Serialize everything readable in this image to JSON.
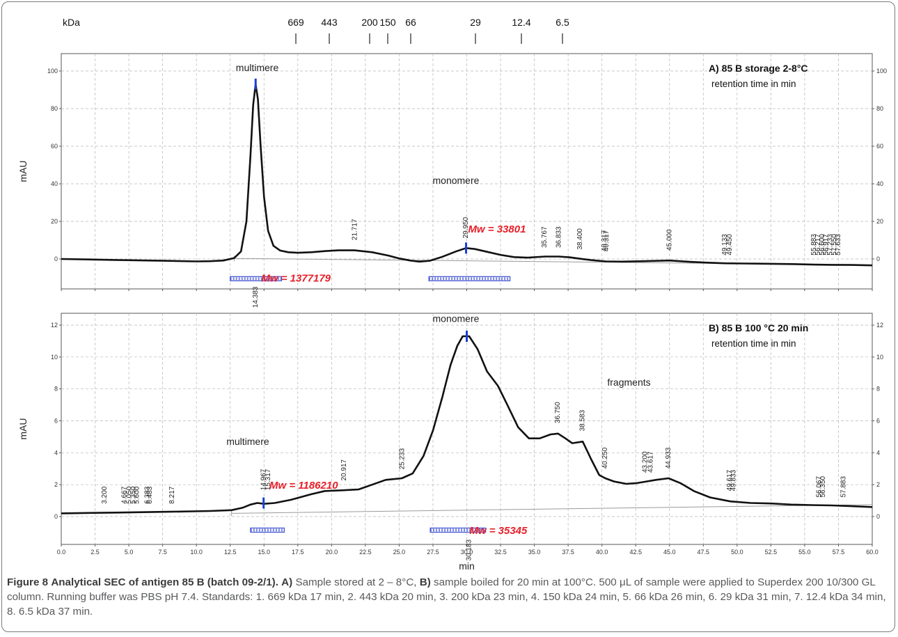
{
  "figure": {
    "title_label": "Figure 8",
    "title_text": "Analytical SEC of antigen 85 B (batch 09-2/1).",
    "caption_a_label": "A)",
    "caption_a_text": "Sample stored at 2 – 8°C,",
    "caption_b_label": "B)",
    "caption_b_text": "sample boiled for 20 min at 100°C. 500 μL of sample were applied to Superdex 200 10/300 GL column. Running buffer was PBS pH 7.4. Standards: 1. 669 kDa 17 min, 2. 443 kDa 20 min, 3. 200 kDa 23 min, 4. 150 kDa 24 min, 5. 66 kDa 26 min, 6. 29 kDa 31 min, 7. 12.4 kDa 34 min, 8. 6.5 kDa 37 min."
  },
  "colors": {
    "trace": "#111111",
    "baseline": "#9a9a9a",
    "grid": "#b5b5b5",
    "annotation_red": "#e8202a",
    "marker_blue": "#1b3fd6",
    "bar_blue": "#3b4fd0"
  },
  "chart_data": [
    {
      "type": "line",
      "id": "panel_a",
      "title": "A) 85 B storage 2-8°C",
      "subtitle": "retention time in min",
      "xlabel": "",
      "ylabel": "mAU",
      "xlim": [
        0,
        60
      ],
      "ylim": [
        -16,
        108
      ],
      "yticks": [
        0,
        20,
        40,
        60,
        80,
        100
      ],
      "grid": true,
      "mw_scale": {
        "label": "kDa",
        "markers": [
          {
            "label": "669",
            "x": 17
          },
          {
            "label": "443",
            "x": 20
          },
          {
            "label": "200",
            "x": 23
          },
          {
            "label": "150",
            "x": 24
          },
          {
            "label": "66",
            "x": 26
          },
          {
            "label": "29",
            "x": 31
          },
          {
            "label": "12.4",
            "x": 34
          },
          {
            "label": "6.5",
            "x": 37
          }
        ]
      },
      "series": [
        {
          "values_x": [
            0,
            4,
            8,
            10,
            11,
            12,
            12.8,
            13.3,
            13.7,
            14.0,
            14.2,
            14.38,
            14.55,
            14.75,
            15.0,
            15.3,
            15.7,
            16.2,
            16.8,
            17.5,
            18.5,
            19.5,
            20.5,
            21.7,
            23.0,
            24.2,
            25.0,
            25.8,
            26.5,
            27.3,
            28.2,
            29.2,
            29.95,
            30.6,
            31.5,
            32.5,
            33.5,
            34.5,
            35.8,
            36.8,
            37.6,
            38.4,
            39.2,
            40.3,
            41.5,
            43.0,
            45.0,
            46.5,
            48.0,
            49.1,
            50.5,
            52.0,
            54.0,
            55.7,
            57.0,
            58.5,
            60.0
          ],
          "values_y": [
            0,
            -0.5,
            -1,
            -1.3,
            -1.2,
            -0.8,
            0.5,
            4,
            20,
            55,
            82,
            93,
            85,
            60,
            33,
            15,
            7,
            4.5,
            3.6,
            3.3,
            3.6,
            4.2,
            4.6,
            4.6,
            3.6,
            1.8,
            0.3,
            -0.8,
            -1.4,
            -0.9,
            1.2,
            4,
            5.8,
            5.3,
            3.8,
            2.2,
            1.0,
            0.7,
            1.3,
            1.3,
            0.9,
            0.1,
            -0.6,
            -1.3,
            -1.4,
            -1.2,
            -0.8,
            -1.5,
            -2.0,
            -2.3,
            -2.4,
            -2.5,
            -2.7,
            -3.0,
            -3.1,
            -3.2,
            -3.4
          ]
        }
      ],
      "baseline": {
        "x": [
          12.8,
          60
        ],
        "y": [
          0.3,
          -3.2
        ]
      },
      "peak_labels": [
        {
          "text": "14.383",
          "x": 14.38,
          "y": -5,
          "below": true
        },
        {
          "text": "21.717",
          "x": 21.72,
          "y": 7
        },
        {
          "text": "29.950",
          "x": 29.95,
          "y": 8
        },
        {
          "text": "35.767",
          "x": 35.77,
          "y": 3
        },
        {
          "text": "36.833",
          "x": 36.83,
          "y": 3
        },
        {
          "text": "38.400",
          "x": 38.4,
          "y": 2
        },
        {
          "text": "40.317",
          "x": 40.2,
          "y": 1
        },
        {
          "text": "40.317",
          "x": 40.35,
          "y": 1
        },
        {
          "text": "45.000",
          "x": 45.0,
          "y": 1.5
        },
        {
          "text": "49.133",
          "x": 49.1,
          "y": -1
        },
        {
          "text": "49.450",
          "x": 49.45,
          "y": -1
        },
        {
          "text": "55.883",
          "x": 55.7,
          "y": -1
        },
        {
          "text": "56.217",
          "x": 56.0,
          "y": -1
        },
        {
          "text": "56.600",
          "x": 56.3,
          "y": -1
        },
        {
          "text": "56.917",
          "x": 56.6,
          "y": -1
        },
        {
          "text": "57.233",
          "x": 56.9,
          "y": -1
        },
        {
          "text": "57.550",
          "x": 57.2,
          "y": -1
        },
        {
          "text": "57.633",
          "x": 57.5,
          "y": -1
        }
      ],
      "text_annotations": [
        {
          "text": "multimere",
          "x": 14.5,
          "y": 100
        },
        {
          "text": "monomere",
          "x": 29.2,
          "y": 40
        }
      ],
      "mw_labels": [
        {
          "text": "Mw = 1377179",
          "x": 14.8,
          "y": -12
        },
        {
          "text": "Mw = 33801",
          "x": 30.1,
          "y": 14
        }
      ],
      "peak_markers": [
        {
          "x": 14.38,
          "y": 93
        },
        {
          "x": 29.95,
          "y": 5.8
        }
      ],
      "integration_bars": [
        {
          "x0": 12.5,
          "x1": 16.3,
          "y": -10.5
        },
        {
          "x0": 27.2,
          "x1": 33.2,
          "y": -10.5
        }
      ]
    },
    {
      "type": "line",
      "id": "panel_b",
      "title": "B) 85 B 100 °C 20 min",
      "subtitle": "retention time in min",
      "xlabel": "min",
      "ylabel": "mAU",
      "xlim": [
        0,
        60
      ],
      "ylim": [
        -1.6,
        12.4
      ],
      "yticks": [
        0,
        2,
        4,
        6,
        8,
        10,
        12
      ],
      "xticks": [
        0.0,
        2.5,
        5.0,
        7.5,
        10.0,
        12.5,
        15.0,
        17.5,
        20.0,
        22.5,
        25.0,
        27.5,
        30.0,
        32.5,
        35.0,
        37.5,
        40.0,
        42.5,
        45.0,
        47.5,
        50.0,
        52.5,
        55.0,
        57.5,
        60.0
      ],
      "grid": true,
      "series": [
        {
          "values_x": [
            0,
            4,
            8,
            11,
            12.6,
            13.4,
            14.0,
            14.5,
            15.0,
            15.8,
            17.0,
            18.5,
            19.5,
            20.9,
            22.0,
            23.0,
            24.0,
            25.2,
            26.0,
            26.8,
            27.5,
            28.2,
            28.8,
            29.3,
            29.7,
            30.18,
            30.8,
            31.5,
            32.3,
            33.0,
            33.8,
            34.6,
            35.4,
            36.2,
            36.75,
            37.3,
            37.8,
            38.58,
            39.2,
            39.8,
            40.25,
            40.9,
            41.8,
            42.6,
            43.3,
            44.0,
            44.93,
            45.8,
            46.8,
            48.0,
            49.5,
            51.0,
            52.5,
            54.0,
            55.5,
            57.0,
            58.5,
            60.0
          ],
          "values_y": [
            0.2,
            0.25,
            0.3,
            0.35,
            0.4,
            0.55,
            0.75,
            0.85,
            0.8,
            0.85,
            1.05,
            1.4,
            1.6,
            1.65,
            1.7,
            2.0,
            2.3,
            2.4,
            2.7,
            3.8,
            5.4,
            7.5,
            9.5,
            10.7,
            11.3,
            11.3,
            10.5,
            9.1,
            8.2,
            7.0,
            5.6,
            4.9,
            4.9,
            5.15,
            5.2,
            4.9,
            4.6,
            4.7,
            3.6,
            2.6,
            2.4,
            2.2,
            2.05,
            2.1,
            2.2,
            2.3,
            2.4,
            2.1,
            1.6,
            1.2,
            0.95,
            0.85,
            0.82,
            0.75,
            0.72,
            0.7,
            0.65,
            0.6
          ]
        }
      ],
      "baseline": {
        "x": [
          12.6,
          60
        ],
        "y": [
          0.2,
          0.75
        ]
      },
      "peak_labels": [
        {
          "text": "3.200",
          "x": 3.2,
          "y": 0.45
        },
        {
          "text": "4.667",
          "x": 4.67,
          "y": 0.45
        },
        {
          "text": "5.050",
          "x": 5.05,
          "y": 0.45
        },
        {
          "text": "5.350",
          "x": 5.35,
          "y": 0.45
        },
        {
          "text": "5.600",
          "x": 5.6,
          "y": 0.45
        },
        {
          "text": "6.383",
          "x": 6.38,
          "y": 0.45
        },
        {
          "text": "6.483",
          "x": 6.55,
          "y": 0.45
        },
        {
          "text": "8.217",
          "x": 8.22,
          "y": 0.45
        },
        {
          "text": "14.967",
          "x": 14.97,
          "y": 1.3
        },
        {
          "text": "15.317",
          "x": 15.32,
          "y": 1.3
        },
        {
          "text": "20.917",
          "x": 20.92,
          "y": 1.9
        },
        {
          "text": "25.233",
          "x": 25.23,
          "y": 2.6
        },
        {
          "text": "30.183",
          "x": 30.18,
          "y": -0.3,
          "below": true
        },
        {
          "text": "36.750",
          "x": 36.75,
          "y": 5.5
        },
        {
          "text": "38.583",
          "x": 38.58,
          "y": 5.0
        },
        {
          "text": "40.250",
          "x": 40.25,
          "y": 2.65
        },
        {
          "text": "43.200",
          "x": 43.2,
          "y": 2.4
        },
        {
          "text": "43.617",
          "x": 43.62,
          "y": 2.4
        },
        {
          "text": "44.933",
          "x": 44.93,
          "y": 2.65
        },
        {
          "text": "49.617",
          "x": 49.45,
          "y": 1.25
        },
        {
          "text": "49.833",
          "x": 49.75,
          "y": 1.25
        },
        {
          "text": "56.067",
          "x": 56.07,
          "y": 0.85
        },
        {
          "text": "56.350",
          "x": 56.35,
          "y": 0.85
        },
        {
          "text": "57.883",
          "x": 57.88,
          "y": 0.85
        }
      ],
      "text_annotations": [
        {
          "text": "monomere",
          "x": 29.2,
          "y": 12.2
        },
        {
          "text": "fragments",
          "x": 42.0,
          "y": 8.2
        },
        {
          "text": "multimere",
          "x": 13.8,
          "y": 4.5
        }
      ],
      "mw_labels": [
        {
          "text": "Mw = 1186210",
          "x": 15.4,
          "y": 1.75
        },
        {
          "text": "Mw = 35345",
          "x": 30.2,
          "y": -1.1
        }
      ],
      "peak_markers": [
        {
          "x": 14.97,
          "y": 0.85
        },
        {
          "x": 30.0,
          "y": 11.3
        }
      ],
      "integration_bars": [
        {
          "x0": 14.0,
          "x1": 16.5,
          "y": -0.85
        },
        {
          "x0": 27.3,
          "x1": 31.4,
          "y": -0.85
        }
      ]
    }
  ]
}
